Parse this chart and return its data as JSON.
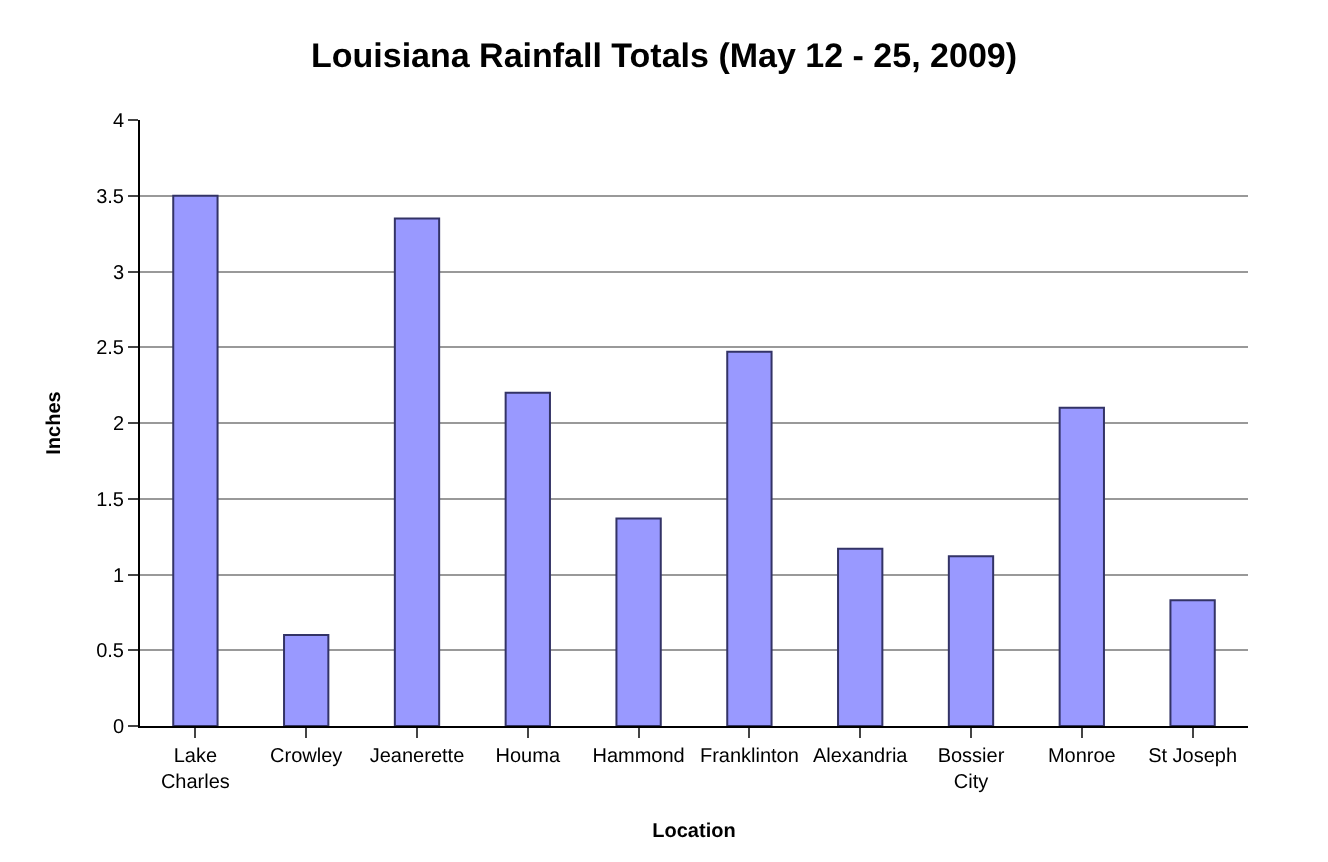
{
  "chart_data": {
    "type": "bar",
    "title": "Louisiana Rainfall Totals (May 12 - 25, 2009)",
    "xlabel": "Location",
    "ylabel": "Inches",
    "categories": [
      "Lake Charles",
      "Crowley",
      "Jeanerette",
      "Houma",
      "Hammond",
      "Franklinton",
      "Alexandria",
      "Bossier City",
      "Monroe",
      "St Joseph"
    ],
    "values": [
      3.5,
      0.6,
      3.35,
      2.2,
      1.37,
      2.47,
      1.17,
      1.12,
      2.1,
      0.83
    ],
    "color": "#9999ff",
    "ylim": [
      0,
      4
    ],
    "yticks": [
      0,
      0.5,
      1,
      1.5,
      2,
      2.5,
      3,
      3.5,
      4
    ],
    "grid": "y"
  }
}
